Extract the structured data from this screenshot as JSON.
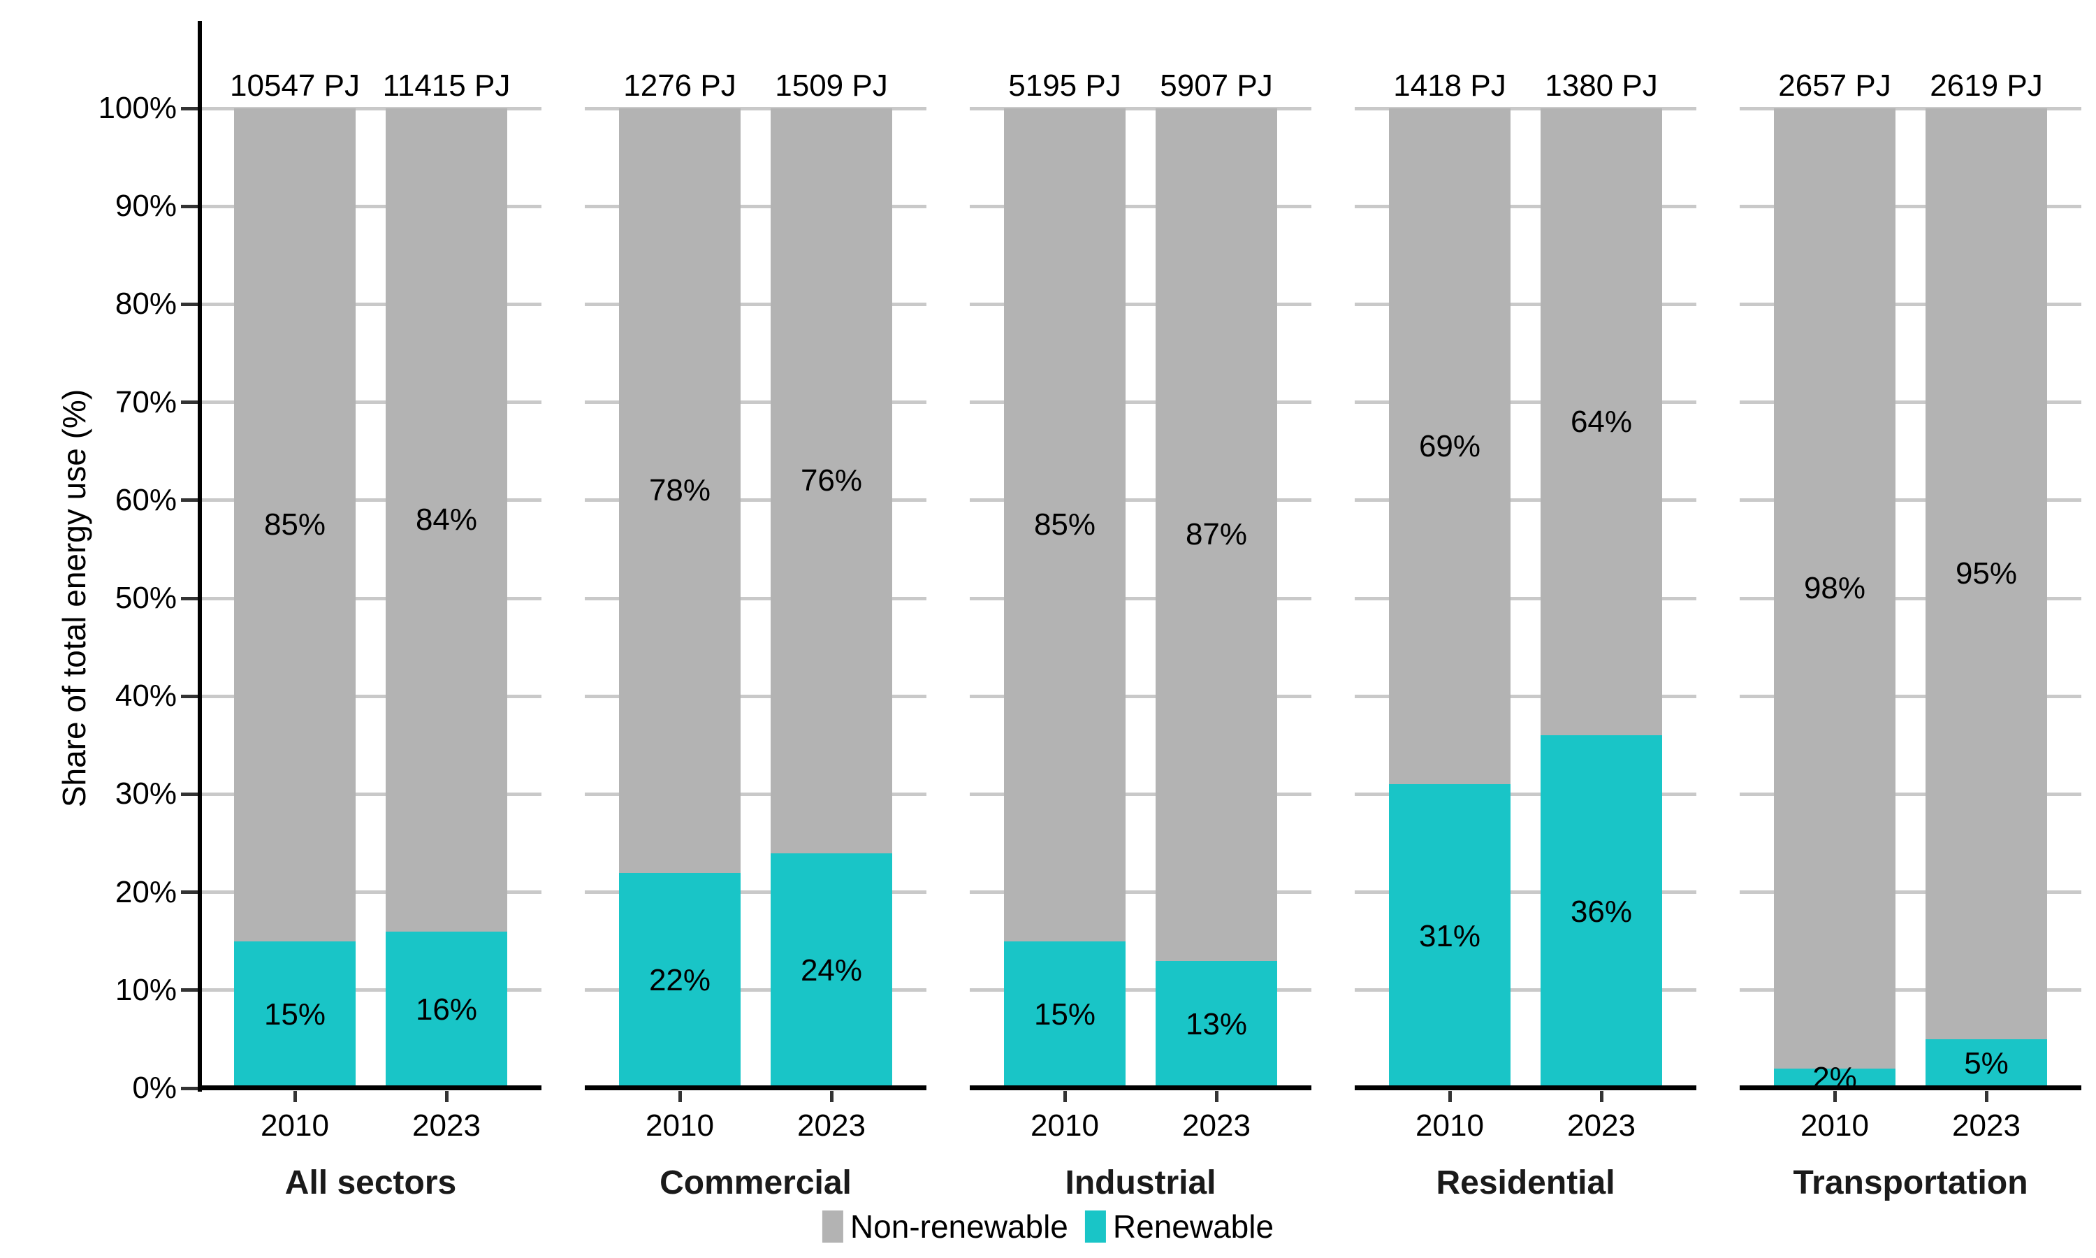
{
  "y_axis": {
    "title": "Share of total energy use (%)",
    "ticks": [
      "0%",
      "10%",
      "20%",
      "30%",
      "40%",
      "50%",
      "60%",
      "70%",
      "80%",
      "90%",
      "100%"
    ]
  },
  "legend": [
    {
      "label": "Non-renewable",
      "color": "#B3B3B3"
    },
    {
      "label": "Renewable",
      "color": "#19C5C7"
    }
  ],
  "chart_data": {
    "type": "bar",
    "stacked": true,
    "title": "",
    "xlabel": "",
    "ylabel": "Share of total energy use (%)",
    "ylim": [
      0,
      100
    ],
    "grid": true,
    "legend_position": "bottom",
    "categories": [
      "2010",
      "2023"
    ],
    "series_names": [
      "Non-renewable",
      "Renewable"
    ],
    "colors": {
      "non_renewable": "#B3B3B3",
      "renewable": "#19C5C7"
    },
    "facets": [
      {
        "title": "All sectors",
        "bars": [
          {
            "year": "2010",
            "total_label": "10547 PJ",
            "renewable_pct": 15,
            "non_renewable_pct": 85,
            "renewable_label": "15%",
            "non_renewable_label": "85%"
          },
          {
            "year": "2023",
            "total_label": "11415 PJ",
            "renewable_pct": 16,
            "non_renewable_pct": 84,
            "renewable_label": "16%",
            "non_renewable_label": "84%"
          }
        ]
      },
      {
        "title": "Commercial",
        "bars": [
          {
            "year": "2010",
            "total_label": "1276 PJ",
            "renewable_pct": 22,
            "non_renewable_pct": 78,
            "renewable_label": "22%",
            "non_renewable_label": "78%"
          },
          {
            "year": "2023",
            "total_label": "1509 PJ",
            "renewable_pct": 24,
            "non_renewable_pct": 76,
            "renewable_label": "24%",
            "non_renewable_label": "76%"
          }
        ]
      },
      {
        "title": "Industrial",
        "bars": [
          {
            "year": "2010",
            "total_label": "5195 PJ",
            "renewable_pct": 15,
            "non_renewable_pct": 85,
            "renewable_label": "15%",
            "non_renewable_label": "85%"
          },
          {
            "year": "2023",
            "total_label": "5907 PJ",
            "renewable_pct": 13,
            "non_renewable_pct": 87,
            "renewable_label": "13%",
            "non_renewable_label": "87%"
          }
        ]
      },
      {
        "title": "Residential",
        "bars": [
          {
            "year": "2010",
            "total_label": "1418 PJ",
            "renewable_pct": 31,
            "non_renewable_pct": 69,
            "renewable_label": "31%",
            "non_renewable_label": "69%"
          },
          {
            "year": "2023",
            "total_label": "1380 PJ",
            "renewable_pct": 36,
            "non_renewable_pct": 64,
            "renewable_label": "36%",
            "non_renewable_label": "64%"
          }
        ]
      },
      {
        "title": "Transportation",
        "bars": [
          {
            "year": "2010",
            "total_label": "2657 PJ",
            "renewable_pct": 2,
            "non_renewable_pct": 98,
            "renewable_label": "2%",
            "non_renewable_label": "98%"
          },
          {
            "year": "2023",
            "total_label": "2619 PJ",
            "renewable_pct": 5,
            "non_renewable_pct": 95,
            "renewable_label": "5%",
            "non_renewable_label": "95%"
          }
        ]
      }
    ]
  }
}
